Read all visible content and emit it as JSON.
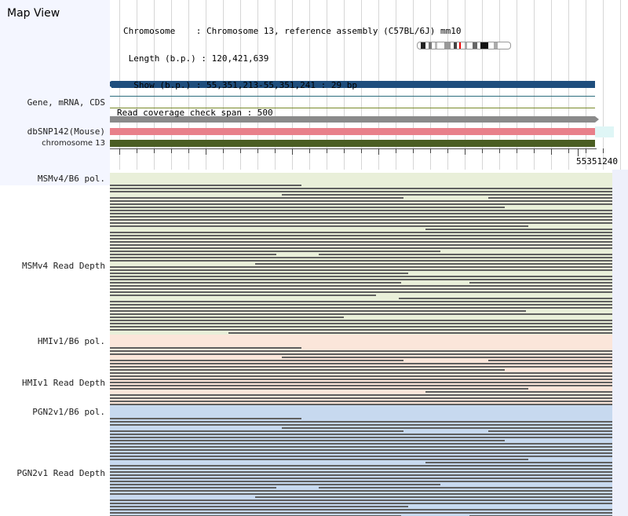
{
  "title": "Map View",
  "info": {
    "chromosome": "Chromosome    : Chromosome 13, reference assembly (C57BL/6J) mm10",
    "length": " Length (b.p.) : 120,421,639",
    "show": "  Show (b.p.) : 55,351,213-55,351,241 : 29 bp",
    "coverage": "Read coverage check span : 500"
  },
  "tracks": {
    "gene": "Gene, mRNA, CDS",
    "dbsnp": "dbSNP142(Mouse)",
    "chromosome": "chromosome 13",
    "msm_pol": "MSMv4/B6 pol.",
    "msm_depth": "MSMv4 Read Depth",
    "hmi_pol": "HMIv1/B6 pol.",
    "hmi_depth": "HMIv1 Read Depth",
    "pgn_pol": "PGN2v1/B6 pol.",
    "pgn_depth": "PGN2v1 Read Depth"
  },
  "axis": {
    "end_coordinate": "55351240"
  },
  "colors": {
    "gene_bar": "#1f4e7d",
    "dbsnp_bar": "#e8808a",
    "chromosome_bar": "#4b5e23",
    "msm_bg": "#e9efd9",
    "hmi_bg": "#fbe6da",
    "pgn_bg": "#c7d9ef",
    "read": "#5f5f5f"
  }
}
